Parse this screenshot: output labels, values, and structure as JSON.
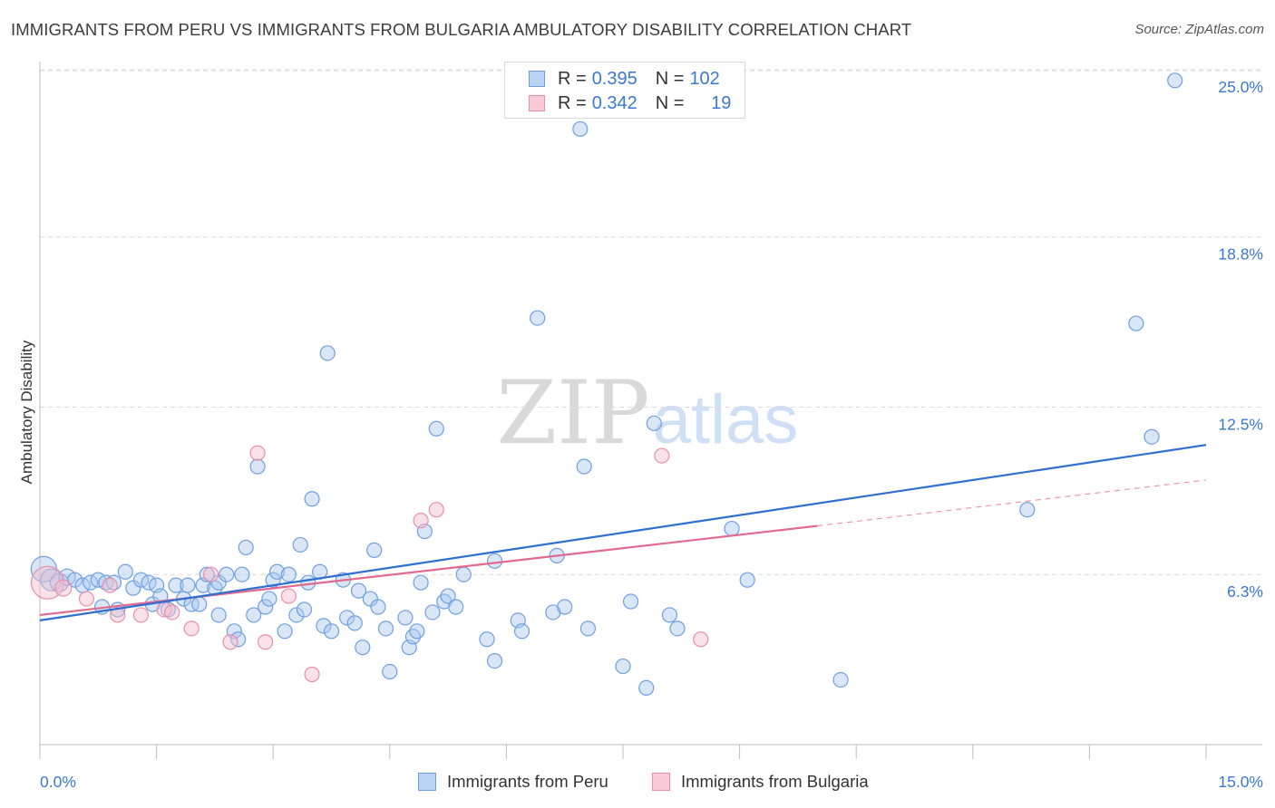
{
  "title": "IMMIGRANTS FROM PERU VS IMMIGRANTS FROM BULGARIA AMBULATORY DISABILITY CORRELATION CHART",
  "source": "Source: ZipAtlas.com",
  "watermark": {
    "zip": "ZIP",
    "atlas": "atlas"
  },
  "colors": {
    "peru_fill": "#a9c8f0",
    "peru_stroke": "#6e9fe0",
    "peru_line": "#2f6fd1",
    "bulgaria_fill": "#f6bccd",
    "bulgaria_stroke": "#ea8fab",
    "bulgaria_line": "#e2698f",
    "axis_text": "#3b78d0",
    "grid": "#dcdcdc"
  },
  "legend": {
    "peru": {
      "r_label": "R = ",
      "r_value": "0.395",
      "n_label": "N = ",
      "n_value": "102"
    },
    "bulgaria": {
      "r_label": "R = ",
      "r_value": "0.342",
      "n_label": "N = ",
      "n_value": "19"
    }
  },
  "bottom_legend": {
    "peru": "Immigrants from Peru",
    "bulgaria": "Immigrants from Bulgaria"
  },
  "chart_data": {
    "type": "scatter",
    "title": "IMMIGRANTS FROM PERU VS IMMIGRANTS FROM BULGARIA AMBULATORY DISABILITY CORRELATION CHART",
    "xlabel": "",
    "ylabel": "Ambulatory Disability",
    "xlim": [
      0,
      15
    ],
    "ylim": [
      0,
      25.6
    ],
    "x_tick_labels": {
      "left": "0.0%",
      "right": "15.0%"
    },
    "y_ticks": [
      {
        "value": 6.3,
        "label": "6.3%"
      },
      {
        "value": 12.5,
        "label": "12.5%"
      },
      {
        "value": 18.8,
        "label": "18.8%"
      },
      {
        "value": 25.0,
        "label": "25.0%"
      }
    ],
    "series": [
      {
        "name": "Immigrants from Peru",
        "r": 0.395,
        "n": 102,
        "trend": {
          "x": [
            0,
            15
          ],
          "y": [
            4.6,
            11.1
          ]
        },
        "points": [
          [
            0.05,
            6.5,
            14
          ],
          [
            0.15,
            6.1,
            12
          ],
          [
            0.25,
            6.0,
            10
          ],
          [
            0.35,
            6.2,
            9
          ],
          [
            0.45,
            6.1,
            8
          ],
          [
            0.55,
            5.9,
            8
          ],
          [
            0.65,
            6.0,
            8
          ],
          [
            0.75,
            6.1,
            8
          ],
          [
            0.85,
            6.0,
            8
          ],
          [
            0.95,
            6.0,
            8
          ],
          [
            0.8,
            5.1,
            8
          ],
          [
            1.0,
            5.0,
            8
          ],
          [
            1.1,
            6.4,
            8
          ],
          [
            1.2,
            5.8,
            8
          ],
          [
            1.3,
            6.1,
            8
          ],
          [
            1.4,
            6.0,
            8
          ],
          [
            1.5,
            5.9,
            8
          ],
          [
            1.45,
            5.2,
            8
          ],
          [
            1.55,
            5.5,
            8
          ],
          [
            1.65,
            5.0,
            8
          ],
          [
            1.75,
            5.9,
            8
          ],
          [
            1.85,
            5.4,
            8
          ],
          [
            1.9,
            5.9,
            8
          ],
          [
            1.95,
            5.2,
            8
          ],
          [
            2.05,
            5.2,
            8
          ],
          [
            2.1,
            5.9,
            8
          ],
          [
            2.15,
            6.3,
            8
          ],
          [
            2.25,
            5.8,
            8
          ],
          [
            2.3,
            6.0,
            8
          ],
          [
            2.3,
            4.8,
            8
          ],
          [
            2.4,
            6.3,
            8
          ],
          [
            2.5,
            4.2,
            8
          ],
          [
            2.55,
            3.9,
            8
          ],
          [
            2.6,
            6.3,
            8
          ],
          [
            2.65,
            7.3,
            8
          ],
          [
            2.75,
            4.8,
            8
          ],
          [
            2.8,
            10.3,
            8
          ],
          [
            2.9,
            5.1,
            8
          ],
          [
            2.95,
            5.4,
            8
          ],
          [
            3.0,
            6.1,
            8
          ],
          [
            3.05,
            6.4,
            8
          ],
          [
            3.15,
            4.2,
            8
          ],
          [
            3.2,
            6.3,
            8
          ],
          [
            3.3,
            4.8,
            8
          ],
          [
            3.35,
            7.4,
            8
          ],
          [
            3.4,
            5.0,
            8
          ],
          [
            3.45,
            6.0,
            8
          ],
          [
            3.5,
            9.1,
            8
          ],
          [
            3.6,
            6.4,
            8
          ],
          [
            3.65,
            4.4,
            8
          ],
          [
            3.7,
            14.5,
            8
          ],
          [
            3.75,
            4.2,
            8
          ],
          [
            3.9,
            6.1,
            8
          ],
          [
            3.95,
            4.7,
            8
          ],
          [
            4.05,
            4.5,
            8
          ],
          [
            4.1,
            5.7,
            8
          ],
          [
            4.15,
            3.6,
            8
          ],
          [
            4.25,
            5.4,
            8
          ],
          [
            4.3,
            7.2,
            8
          ],
          [
            4.35,
            5.1,
            8
          ],
          [
            4.45,
            4.3,
            8
          ],
          [
            4.5,
            2.7,
            8
          ],
          [
            4.7,
            4.7,
            8
          ],
          [
            4.75,
            3.6,
            8
          ],
          [
            4.8,
            4.0,
            8
          ],
          [
            4.85,
            4.2,
            8
          ],
          [
            4.9,
            6.0,
            8
          ],
          [
            4.95,
            7.9,
            8
          ],
          [
            5.05,
            4.9,
            8
          ],
          [
            5.1,
            11.7,
            8
          ],
          [
            5.2,
            5.3,
            8
          ],
          [
            5.25,
            5.5,
            8
          ],
          [
            5.35,
            5.1,
            8
          ],
          [
            5.45,
            6.3,
            8
          ],
          [
            5.75,
            3.9,
            8
          ],
          [
            5.85,
            6.8,
            8
          ],
          [
            5.85,
            3.1,
            8
          ],
          [
            6.15,
            4.6,
            8
          ],
          [
            6.2,
            4.2,
            8
          ],
          [
            6.4,
            15.8,
            8
          ],
          [
            6.6,
            4.9,
            8
          ],
          [
            6.65,
            7.0,
            8
          ],
          [
            6.75,
            5.1,
            8
          ],
          [
            6.95,
            22.8,
            8
          ],
          [
            7.0,
            10.3,
            8
          ],
          [
            7.05,
            4.3,
            8
          ],
          [
            7.5,
            2.9,
            8
          ],
          [
            7.6,
            5.3,
            8
          ],
          [
            7.8,
            2.1,
            8
          ],
          [
            7.9,
            11.9,
            8
          ],
          [
            8.1,
            4.8,
            8
          ],
          [
            8.2,
            4.3,
            8
          ],
          [
            8.9,
            8.0,
            8
          ],
          [
            9.1,
            6.1,
            8
          ],
          [
            10.3,
            2.4,
            8
          ],
          [
            12.7,
            8.7,
            8
          ],
          [
            14.1,
            15.6,
            8
          ],
          [
            14.3,
            11.4,
            8
          ],
          [
            14.6,
            24.6,
            8
          ]
        ]
      },
      {
        "name": "Immigrants from Bulgaria",
        "r": 0.342,
        "n": 19,
        "trend": {
          "x": [
            0,
            10.0
          ],
          "y": [
            4.8,
            8.1
          ]
        },
        "trend_dashed": {
          "x": [
            10.0,
            15
          ],
          "y": [
            8.1,
            9.8
          ]
        },
        "points": [
          [
            0.1,
            6.0,
            18
          ],
          [
            0.3,
            5.8,
            9
          ],
          [
            0.6,
            5.4,
            8
          ],
          [
            0.9,
            5.9,
            8
          ],
          [
            1.0,
            4.8,
            8
          ],
          [
            1.3,
            4.8,
            8
          ],
          [
            1.6,
            5.0,
            8
          ],
          [
            1.7,
            4.9,
            8
          ],
          [
            1.95,
            4.3,
            8
          ],
          [
            2.2,
            6.3,
            8
          ],
          [
            2.45,
            3.8,
            8
          ],
          [
            2.8,
            10.8,
            8
          ],
          [
            2.9,
            3.8,
            8
          ],
          [
            3.2,
            5.5,
            8
          ],
          [
            3.5,
            2.6,
            8
          ],
          [
            4.9,
            8.3,
            8
          ],
          [
            5.1,
            8.7,
            8
          ],
          [
            8.0,
            10.7,
            8
          ],
          [
            8.5,
            3.9,
            8
          ]
        ]
      }
    ]
  }
}
